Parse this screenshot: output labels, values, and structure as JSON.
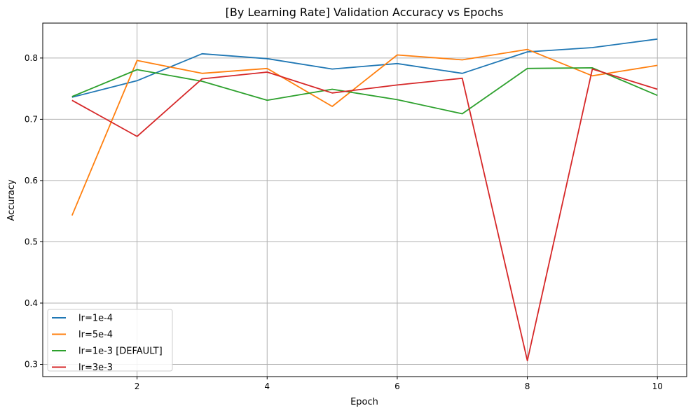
{
  "chart_data": {
    "type": "line",
    "title": "[By Learning Rate] Validation Accuracy vs Epochs",
    "xlabel": "Epoch",
    "ylabel": "Accuracy",
    "x": [
      1,
      2,
      3,
      4,
      5,
      6,
      7,
      8,
      9,
      10
    ],
    "xlim": [
      0.55,
      10.45
    ],
    "ylim": [
      0.28,
      0.857
    ],
    "xticks": [
      2,
      4,
      6,
      8,
      10
    ],
    "yticks": [
      0.3,
      0.4,
      0.5,
      0.6,
      0.7,
      0.8
    ],
    "ytick_labels": [
      "0.3",
      "0.4",
      "0.5",
      "0.6",
      "0.7",
      "0.8"
    ],
    "grid": true,
    "legend_position": "lower-left",
    "series": [
      {
        "name": "lr=1e-4",
        "color": "#1f77b4",
        "values": [
          0.736,
          0.763,
          0.807,
          0.799,
          0.782,
          0.791,
          0.775,
          0.81,
          0.817,
          0.831
        ]
      },
      {
        "name": "lr=5e-4",
        "color": "#ff7f0e",
        "values": [
          0.543,
          0.796,
          0.775,
          0.783,
          0.721,
          0.805,
          0.797,
          0.814,
          0.771,
          0.788
        ]
      },
      {
        "name": "lr=1e-3 [DEFAULT]",
        "color": "#2ca02c",
        "values": [
          0.737,
          0.781,
          0.762,
          0.731,
          0.749,
          0.732,
          0.709,
          0.783,
          0.784,
          0.739
        ]
      },
      {
        "name": "lr=3e-3",
        "color": "#d62728",
        "values": [
          0.731,
          0.672,
          0.766,
          0.777,
          0.743,
          0.756,
          0.767,
          0.306,
          0.782,
          0.749
        ]
      }
    ]
  }
}
